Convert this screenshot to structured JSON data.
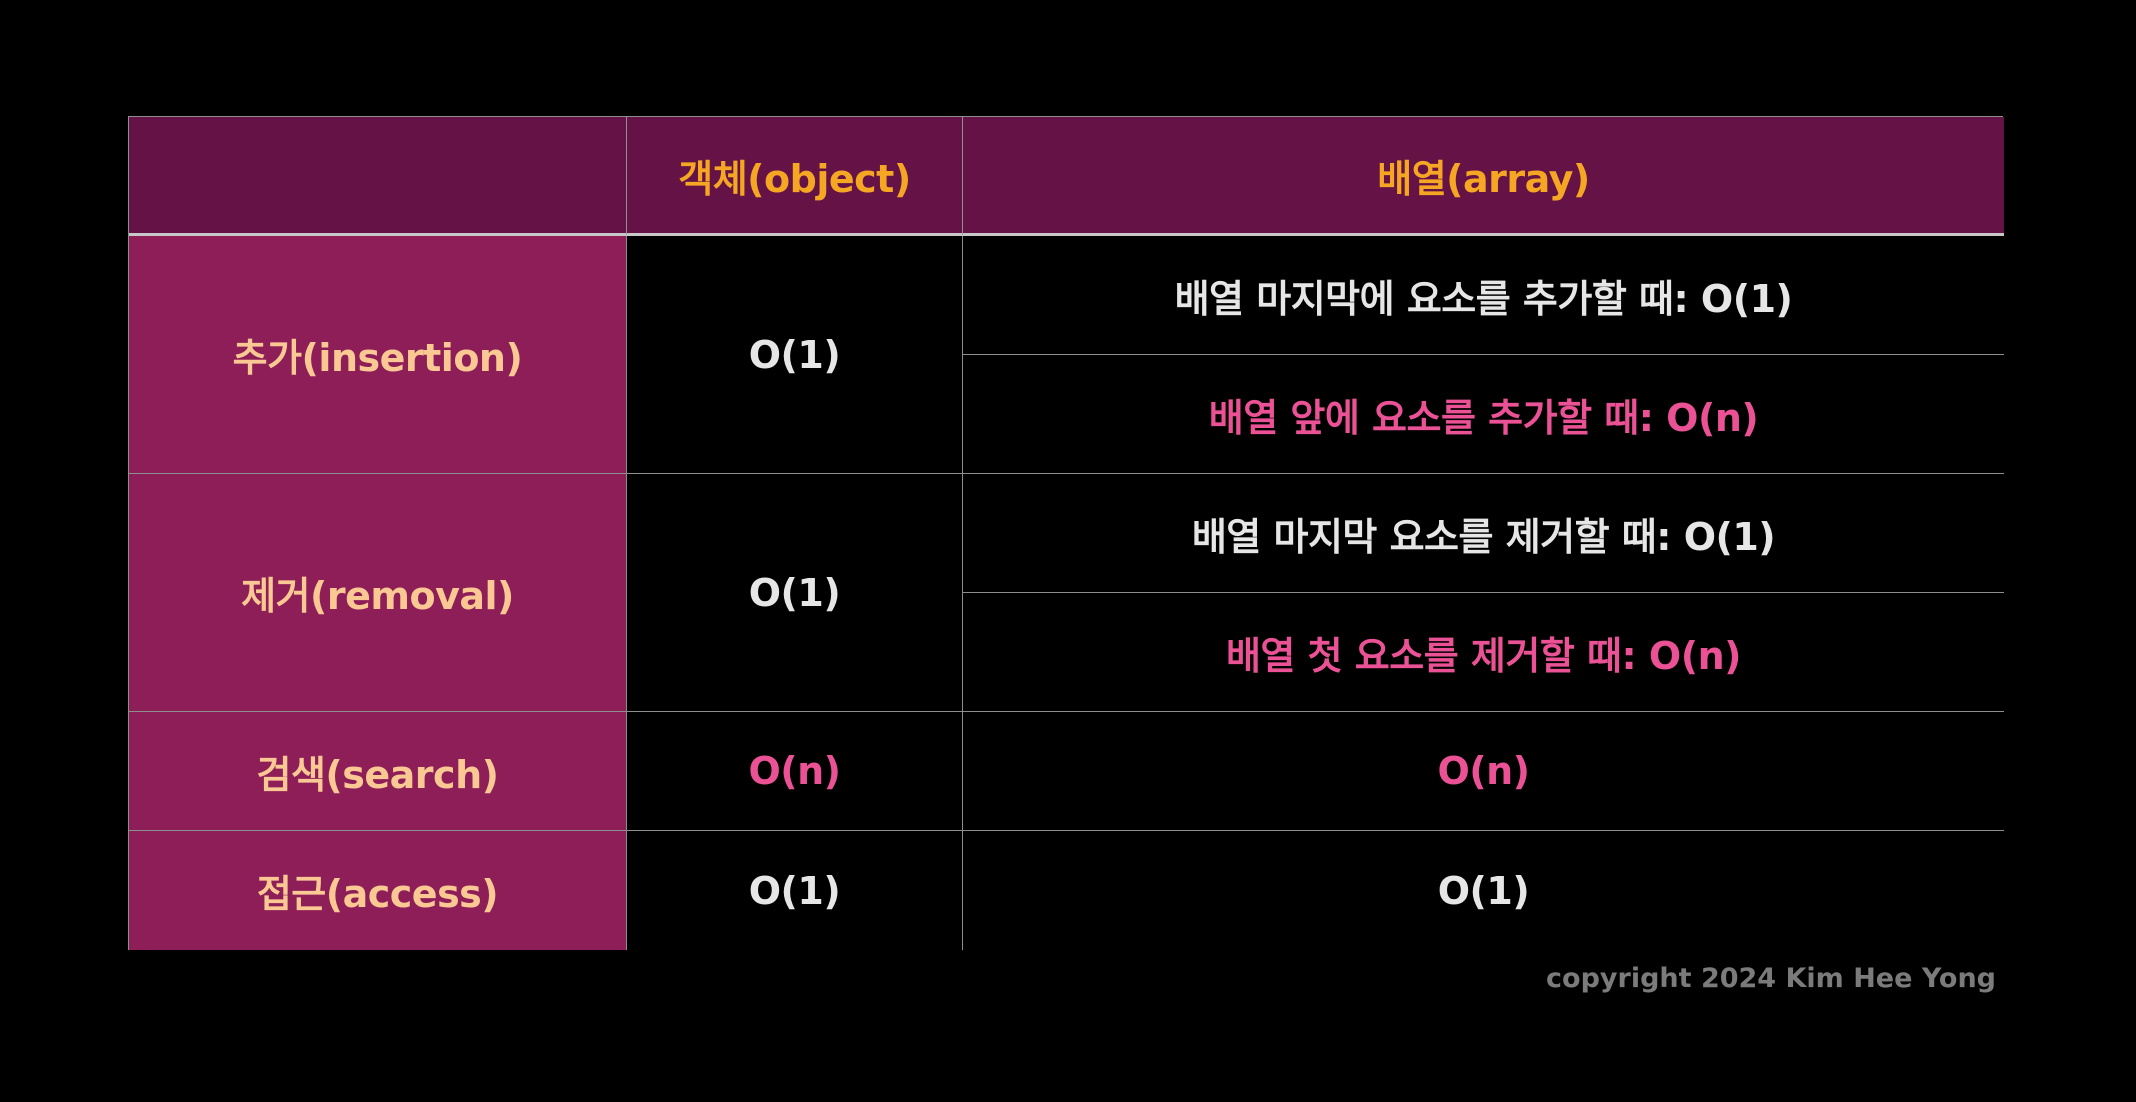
{
  "table": {
    "headers": {
      "corner": "",
      "object": "객체(object)",
      "array": "배열(array)"
    },
    "rows": {
      "insertion": {
        "label": "추가(insertion)",
        "object": "O(1)",
        "array_end": "배열 마지막에 요소를 추가할 때: O(1)",
        "array_front": "배열 앞에 요소를 추가할 때: O(n)"
      },
      "removal": {
        "label": "제거(removal)",
        "object": "O(1)",
        "array_end": "배열 마지막 요소를 제거할 때: O(1)",
        "array_front": "배열 첫 요소를 제거할 때: O(n)"
      },
      "search": {
        "label": "검색(search)",
        "object": "O(n)",
        "array": "O(n)"
      },
      "access": {
        "label": "접근(access)",
        "object": "O(1)",
        "array": "O(1)"
      }
    }
  },
  "footer": {
    "copyright": "copyright 2024 Kim Hee Yong"
  },
  "colors": {
    "header_bg": "#651346",
    "header_text": "#f5a623",
    "row_header_bg": "#8d1e57",
    "row_header_text": "#f9c893",
    "value_text": "#e6e6e6",
    "highlight_text": "#ea5295"
  }
}
